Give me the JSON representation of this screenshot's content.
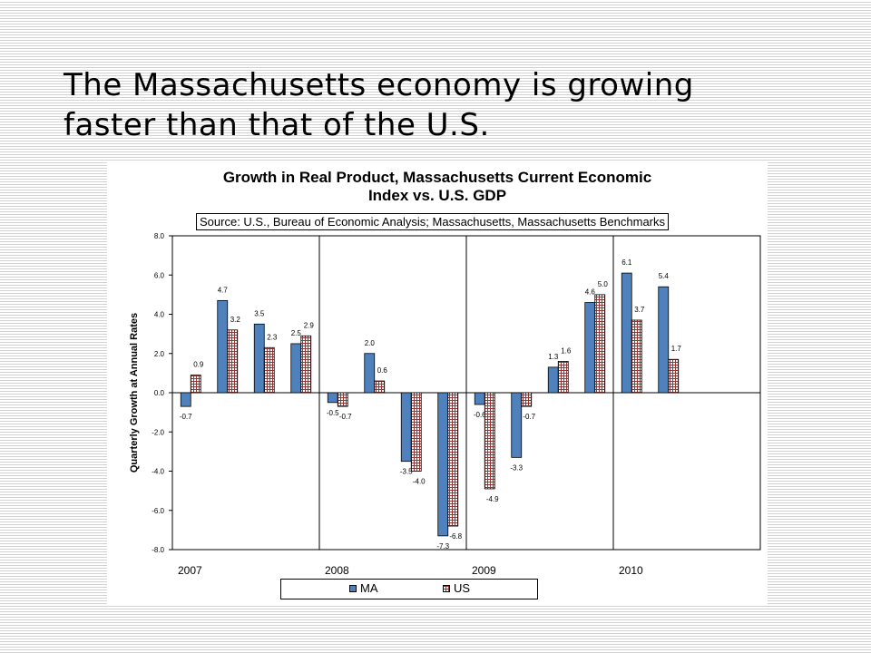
{
  "slide": {
    "title_line1": "The Massachusetts economy is growing",
    "title_line2": "faster than that of the U.S."
  },
  "chart_data": {
    "type": "bar",
    "title_line1": "Growth in Real Product, Massachusetts Current Economic",
    "title_line2": "Index vs. U.S. GDP",
    "source": "Source: U.S., Bureau of Economic Analysis; Massachusetts, Massachusetts Benchmarks",
    "ylabel": "Quarterly Growth at Annual Rates",
    "ylim": [
      -8,
      8
    ],
    "yticks": [
      "8.0",
      "6.0",
      "4.0",
      "2.0",
      "0.0",
      "-2.0",
      "-4.0",
      "-6.0",
      "-8.0"
    ],
    "years": [
      "2007",
      "2008",
      "2009",
      "2010"
    ],
    "quarters_per_year": 4,
    "series": [
      {
        "name": "MA",
        "color": "#4f81bd",
        "values": [
          -0.7,
          4.7,
          3.5,
          2.5,
          -0.5,
          2.0,
          -3.5,
          -7.3,
          -0.6,
          -3.3,
          1.3,
          4.6,
          6.1,
          5.4
        ]
      },
      {
        "name": "US",
        "color": "#953735",
        "pattern": "grid",
        "values": [
          0.9,
          3.2,
          2.3,
          2.9,
          -0.7,
          0.6,
          -4.0,
          -6.8,
          -4.9,
          -0.7,
          1.6,
          5.0,
          3.7,
          1.7
        ]
      }
    ],
    "data_labels": {
      "MA": [
        "-0.7",
        "4.7",
        "3.5",
        "2.5",
        "-0.5",
        "2.0",
        "-3.5",
        "-7.3",
        "-0.6",
        "-3.3",
        "1.3",
        "4.6",
        "6.1",
        "5.4"
      ],
      "US": [
        "0.9",
        "3.2",
        "2.3",
        "2.9",
        "-0.7",
        "0.6",
        "-4.0",
        "-6.8",
        "-4.9",
        "-0.7",
        "1.6",
        "5.0",
        "3.7",
        "1.7"
      ]
    },
    "grid": false,
    "legend": "bottom"
  }
}
